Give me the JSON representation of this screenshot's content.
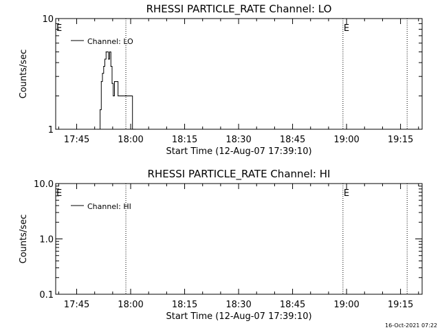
{
  "footer_timestamp": "16-Oct-2021 07:22",
  "chart_data": [
    {
      "type": "line",
      "title": "RHESSI PARTICLE_RATE Channel: LO",
      "xlabel": "Start Time (12-Aug-07 17:39:10)",
      "ylabel": "Counts/sec",
      "yscale": "log",
      "xlim": [
        "17:39:10",
        "19:21:00"
      ],
      "ylim": [
        1,
        10
      ],
      "xticks": [
        "17:45",
        "18:00",
        "18:15",
        "18:30",
        "18:45",
        "19:00",
        "19:15"
      ],
      "yticks": [
        "1",
        "10"
      ],
      "legend": "top-left",
      "series": [
        {
          "name": "Channel: LO",
          "step": true,
          "x": [
            "17:39:10",
            "17:51:00",
            "17:51:30",
            "17:51:50",
            "17:52:10",
            "17:52:30",
            "17:52:50",
            "17:53:10",
            "17:53:30",
            "17:53:50",
            "17:54:10",
            "17:54:30",
            "17:54:50",
            "17:55:10",
            "17:55:30",
            "17:55:50",
            "17:56:10",
            "17:56:30",
            "17:56:50",
            "17:57:10",
            "17:57:30",
            "17:57:50",
            "17:58:10",
            "17:58:30",
            "17:58:50",
            "17:59:10",
            "17:59:30",
            "17:59:50",
            "18:00:10",
            "18:00:30",
            "18:00:50",
            "18:01:10"
          ],
          "y": [
            1,
            1,
            1.5,
            2.7,
            3.2,
            3.7,
            4.3,
            5.0,
            5.0,
            4.3,
            5.0,
            3.7,
            2.6,
            2.0,
            2.7,
            2.7,
            2.7,
            2.0,
            2.0,
            2.0,
            2.0,
            2.0,
            2.0,
            2.0,
            2.0,
            2.0,
            2.0,
            2.0,
            2.0,
            1.0,
            1.0,
            1.0
          ]
        }
      ],
      "vlines": [
        {
          "time": "17:58:40",
          "label": ""
        },
        {
          "time": "18:59:00",
          "label": "E"
        },
        {
          "time": "19:16:50",
          "label": ""
        }
      ],
      "edge_labels": [
        {
          "time": "17:39:10",
          "label": "E"
        }
      ]
    },
    {
      "type": "line",
      "title": "RHESSI PARTICLE_RATE Channel: HI",
      "xlabel": "Start Time (12-Aug-07 17:39:10)",
      "ylabel": "Counts/sec",
      "yscale": "log",
      "xlim": [
        "17:39:10",
        "19:21:00"
      ],
      "ylim": [
        0.1,
        10.0
      ],
      "xticks": [
        "17:45",
        "18:00",
        "18:15",
        "18:30",
        "18:45",
        "19:00",
        "19:15"
      ],
      "yticks": [
        "0.1",
        "1.0",
        "10.0"
      ],
      "legend": "top-left",
      "series": [
        {
          "name": "Channel: HI",
          "step": true,
          "x": [],
          "y": []
        }
      ],
      "vlines": [
        {
          "time": "17:58:40",
          "label": ""
        },
        {
          "time": "18:59:00",
          "label": "E"
        },
        {
          "time": "19:16:50",
          "label": ""
        }
      ],
      "edge_labels": [
        {
          "time": "17:39:10",
          "label": "E"
        }
      ]
    }
  ]
}
